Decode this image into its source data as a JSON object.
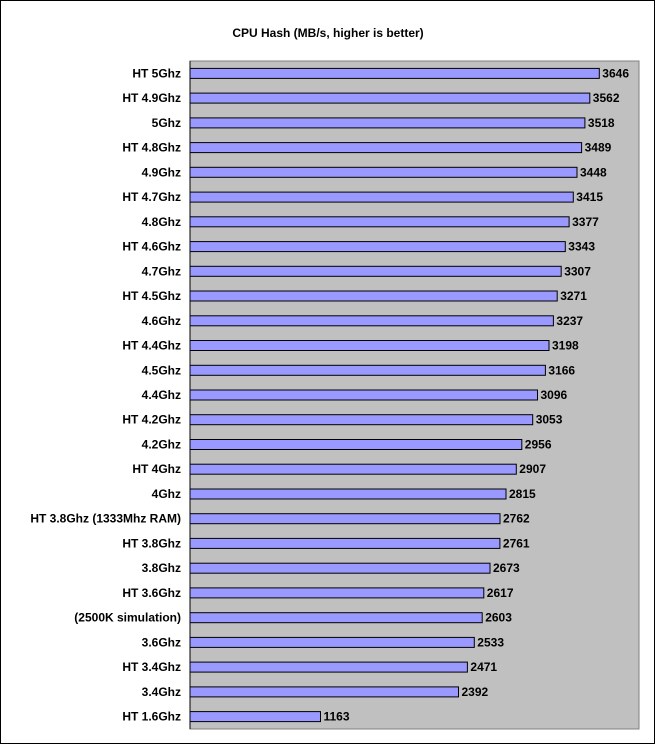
{
  "chart_data": {
    "type": "bar",
    "orientation": "horizontal",
    "title": "CPU Hash (MB/s, higher is better)",
    "categories": [
      "HT 5Ghz",
      "HT 4.9Ghz",
      "5Ghz",
      "HT 4.8Ghz",
      "4.9Ghz",
      "HT 4.7Ghz",
      "4.8Ghz",
      "HT 4.6Ghz",
      "4.7Ghz",
      "HT 4.5Ghz",
      "4.6Ghz",
      "HT 4.4Ghz",
      "4.5Ghz",
      "4.4Ghz",
      "HT 4.2Ghz",
      "4.2Ghz",
      "HT 4Ghz",
      "4Ghz",
      "HT 3.8Ghz (1333Mhz RAM)",
      "HT 3.8Ghz",
      "3.8Ghz",
      "HT 3.6Ghz",
      "(2500K simulation)",
      "3.6Ghz",
      "HT 3.4Ghz",
      "3.4Ghz",
      "HT 1.6Ghz"
    ],
    "values": [
      3646,
      3562,
      3518,
      3489,
      3448,
      3415,
      3377,
      3343,
      3307,
      3271,
      3237,
      3198,
      3166,
      3096,
      3053,
      2956,
      2907,
      2815,
      2762,
      2761,
      2673,
      2617,
      2603,
      2533,
      2471,
      2392,
      1163
    ],
    "xlim": [
      0,
      4000
    ],
    "grid": false,
    "legend": "none",
    "bar_color": "#9999ff",
    "plot_background": "#c0c0c0"
  }
}
